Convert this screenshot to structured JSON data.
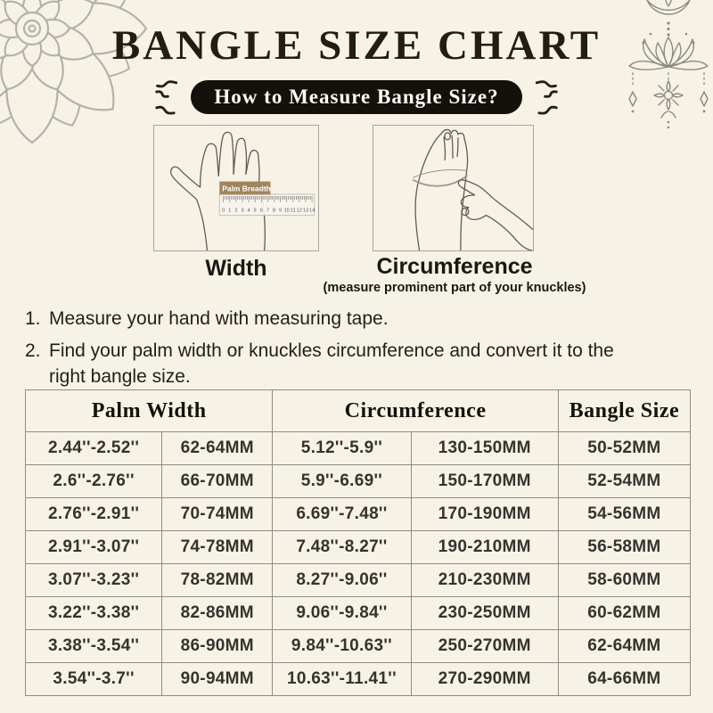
{
  "header": {
    "title": "BANGLE SIZE CHART",
    "badge": "How to Measure Bangle Size?"
  },
  "figures": {
    "width": {
      "caption": "Width",
      "ruler_label": "Palm Breadth",
      "ruler_numbers": [
        "0",
        "1",
        "2",
        "3",
        "4",
        "5",
        "6",
        "7",
        "8",
        "9",
        "10",
        "11",
        "12",
        "13",
        "14"
      ]
    },
    "circumference": {
      "caption": "Circumference",
      "note": "(measure prominent part of your knuckles)"
    }
  },
  "instructions": [
    {
      "num": "1.",
      "text": "Measure your hand with measuring tape."
    },
    {
      "num": "2.",
      "text": "Find your palm width or knuckles circumference and convert it to the right bangle size."
    }
  ],
  "size_table": {
    "headers": [
      {
        "label": "Palm Width"
      },
      {
        "label": "Circumference"
      },
      {
        "label": "Bangle Size"
      }
    ],
    "rows": [
      [
        "2.44''-2.52''",
        "62-64MM",
        "5.12''-5.9''",
        "130-150MM",
        "50-52MM"
      ],
      [
        "2.6''-2.76''",
        "66-70MM",
        "5.9''-6.69''",
        "150-170MM",
        "52-54MM"
      ],
      [
        "2.76''-2.91''",
        "70-74MM",
        "6.69''-7.48''",
        "170-190MM",
        "54-56MM"
      ],
      [
        "2.91''-3.07''",
        "74-78MM",
        "7.48''-8.27''",
        "190-210MM",
        "56-58MM"
      ],
      [
        "3.07''-3.23''",
        "78-82MM",
        "8.27''-9.06''",
        "210-230MM",
        "58-60MM"
      ],
      [
        "3.22''-3.38''",
        "82-86MM",
        "9.06''-9.84''",
        "230-250MM",
        "60-62MM"
      ],
      [
        "3.38''-3.54''",
        "86-90MM",
        "9.84''-10.63''",
        "250-270MM",
        "62-64MM"
      ],
      [
        "3.54''-3.7''",
        "90-94MM",
        "10.63''-11.41''",
        "270-290MM",
        "64-66MM"
      ]
    ]
  },
  "colors": {
    "background": "#f6f2e6",
    "title_text": "#251c10",
    "badge_bg": "#14110c",
    "badge_text": "#fdfbf5",
    "table_border": "#8f8c84",
    "body_text": "#211f1a",
    "ornament_line": "#b4b1aa",
    "ruler_label_bg": "#a2855e"
  }
}
